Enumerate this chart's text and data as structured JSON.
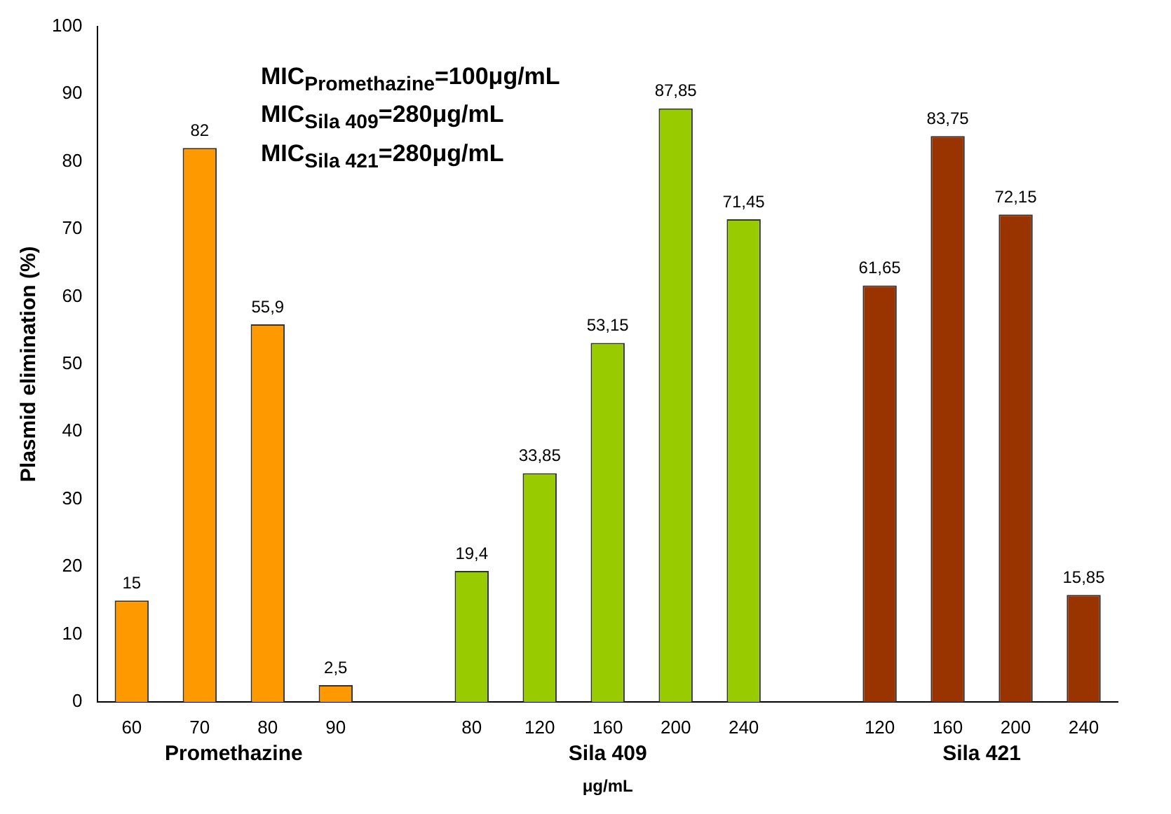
{
  "chart_data": {
    "type": "bar",
    "ylabel": "Plasmid elimination (%)",
    "xlabel": "μg/mL",
    "categories": [
      "60",
      "70",
      "80",
      "90",
      null,
      "80",
      "120",
      "160",
      "200",
      "240",
      null,
      "120",
      "160",
      "200",
      "240"
    ],
    "values": [
      15,
      82,
      55.9,
      2.5,
      null,
      19.4,
      33.85,
      53.15,
      87.85,
      71.45,
      null,
      61.65,
      83.75,
      72.15,
      15.85
    ],
    "value_labels": [
      "15",
      "82",
      "55,9",
      "2,5",
      null,
      "19,4",
      "33,85",
      "53,15",
      "87,85",
      "71,45",
      null,
      "61,65",
      "83,75",
      "72,15",
      "15,85"
    ],
    "colors": [
      "#ff9900",
      "#ff9900",
      "#ff9900",
      "#ff9900",
      null,
      "#99cc00",
      "#99cc00",
      "#99cc00",
      "#99cc00",
      "#99cc00",
      null,
      "#993300",
      "#993300",
      "#993300",
      "#993300"
    ],
    "ylim": [
      0,
      100
    ],
    "yticks": [
      0,
      10,
      20,
      30,
      40,
      50,
      60,
      70,
      80,
      90,
      100
    ],
    "grid": false,
    "legend": false,
    "annotations": [
      "Promethazine",
      "Sila 409",
      "Sila 421",
      "MIC$_{Promethazine}$=100μg/mL",
      "MIC$_{Sila 409}$=280μg/mL",
      "MIC$_{Sila 421}$=280μg/mL"
    ]
  }
}
